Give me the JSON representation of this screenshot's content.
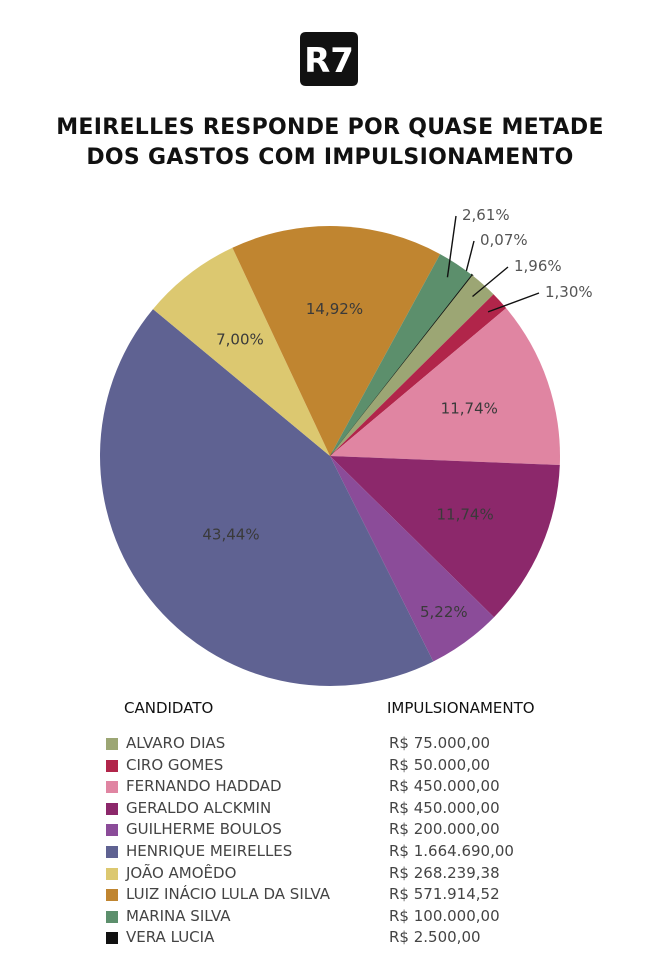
{
  "logo": {
    "text": "R7"
  },
  "title": {
    "line1": "MEIRELLES RESPONDE POR QUASE METADE",
    "line2": "DOS GASTOS COM IMPULSIONAMENTO"
  },
  "legend": {
    "col_candidate": "CANDIDATO",
    "col_amount": "IMPULSIONAMENTO",
    "rows": [
      {
        "name": "ALVARO DIAS",
        "amount": "R$ 75.000,00",
        "color": "#9ca674"
      },
      {
        "name": "CIRO GOMES",
        "amount": "R$ 50.000,00",
        "color": "#b1254a"
      },
      {
        "name": "FERNANDO HADDAD",
        "amount": "R$ 450.000,00",
        "color": "#e085a2"
      },
      {
        "name": "GERALDO ALCKMIN",
        "amount": "R$ 450.000,00",
        "color": "#8c286b"
      },
      {
        "name": "GUILHERME BOULOS",
        "amount": "R$ 200.000,00",
        "color": "#8b4c99"
      },
      {
        "name": "HENRIQUE MEIRELLES",
        "amount": "R$ 1.664.690,00",
        "color": "#5f6292"
      },
      {
        "name": "JOÃO AMOÊDO",
        "amount": "R$ 268.239,38",
        "color": "#dcc870"
      },
      {
        "name": "LUIZ INÁCIO LULA DA SILVA",
        "amount": "R$ 571.914,52",
        "color": "#c08530"
      },
      {
        "name": "MARINA SILVA",
        "amount": "R$ 100.000,00",
        "color": "#5c8f6c"
      },
      {
        "name": "VERA LUCIA",
        "amount": "R$ 2.500,00",
        "color": "#111111"
      }
    ]
  },
  "chart_data": {
    "type": "pie",
    "title": "MEIRELLES RESPONDE POR QUASE METADE DOS GASTOS COM IMPULSIONAMENTO",
    "start_angle_deg": 38,
    "direction": "clockwise",
    "slices": [
      {
        "name": "VERA LUCIA",
        "value": 0.07,
        "label": "0,07%",
        "color": "#111111",
        "callout": true
      },
      {
        "name": "ALVARO DIAS",
        "value": 1.96,
        "label": "1,96%",
        "color": "#9ca674",
        "callout": true
      },
      {
        "name": "CIRO GOMES",
        "value": 1.3,
        "label": "1,30%",
        "color": "#b1254a",
        "callout": true
      },
      {
        "name": "FERNANDO HADDAD",
        "value": 11.74,
        "label": "11,74%",
        "color": "#e085a2",
        "callout": false
      },
      {
        "name": "GERALDO ALCKMIN",
        "value": 11.74,
        "label": "11,74%",
        "color": "#8c286b",
        "callout": false
      },
      {
        "name": "GUILHERME BOULOS",
        "value": 5.22,
        "label": "5,22%",
        "color": "#8b4c99",
        "callout": false
      },
      {
        "name": "HENRIQUE MEIRELLES",
        "value": 43.44,
        "label": "43,44%",
        "color": "#5f6292",
        "callout": false
      },
      {
        "name": "JOÃO AMOÊDO",
        "value": 7.0,
        "label": "7,00%",
        "color": "#dcc870",
        "callout": false
      },
      {
        "name": "LUIZ INÁCIO LULA DA SILVA",
        "value": 14.92,
        "label": "14,92%",
        "color": "#c08530",
        "callout": false
      },
      {
        "name": "MARINA SILVA",
        "value": 2.61,
        "label": "2,61%",
        "color": "#5c8f6c",
        "callout": true
      }
    ]
  }
}
